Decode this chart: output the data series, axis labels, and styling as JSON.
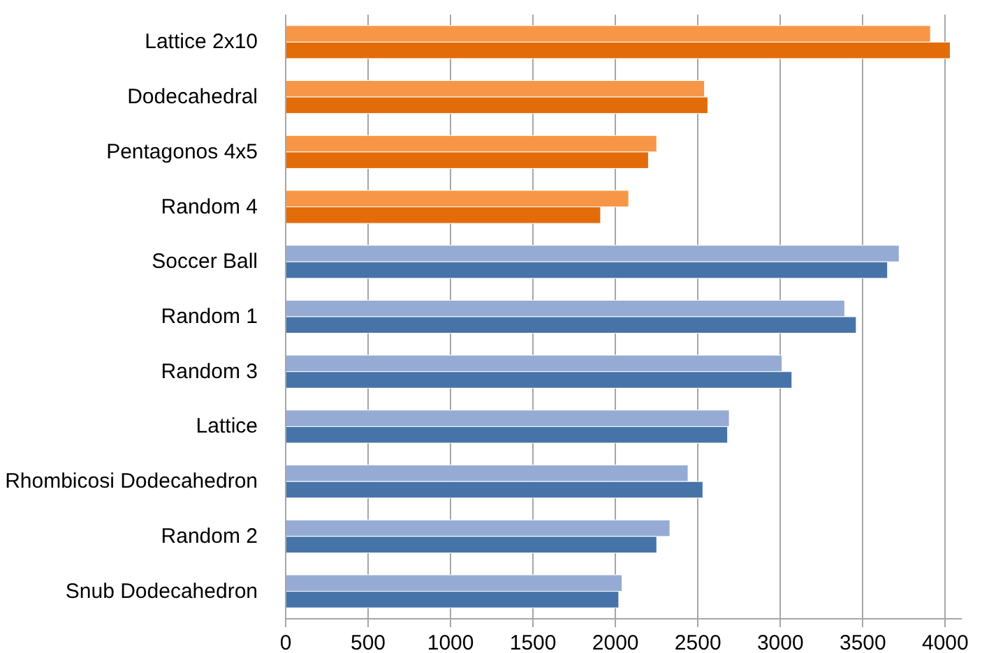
{
  "chart_data": {
    "type": "bar",
    "orientation": "horizontal",
    "categories": [
      "Lattice 2x10",
      "Dodecahedral",
      "Pentagonos 4x5",
      "Random 4",
      "Soccer Ball",
      "Random 1",
      "Random 3",
      "Lattice",
      "Rhombicosi Dodecahedron",
      "Random 2",
      "Snub Dodecahedron"
    ],
    "series": [
      {
        "colors": [
          "#f79646",
          "#f79646",
          "#f79646",
          "#f79646",
          "#95abd3",
          "#95abd3",
          "#95abd3",
          "#95abd3",
          "#95abd3",
          "#95abd3",
          "#95abd3"
        ],
        "values": [
          3910,
          2540,
          2250,
          2080,
          3720,
          3390,
          3010,
          2690,
          2440,
          2330,
          2040
        ]
      },
      {
        "colors": [
          "#e36c0a",
          "#e36c0a",
          "#e36c0a",
          "#e36c0a",
          "#4674a8",
          "#4674a8",
          "#4674a8",
          "#4674a8",
          "#4674a8",
          "#4674a8",
          "#4674a8"
        ],
        "values": [
          4030,
          2560,
          2200,
          1910,
          3650,
          3460,
          3070,
          2680,
          2530,
          2250,
          2020
        ]
      }
    ],
    "xlim": [
      0,
      4100
    ],
    "xticks": [
      0,
      500,
      1000,
      1500,
      2000,
      2500,
      3000,
      3500,
      4000
    ],
    "grid": "x"
  }
}
